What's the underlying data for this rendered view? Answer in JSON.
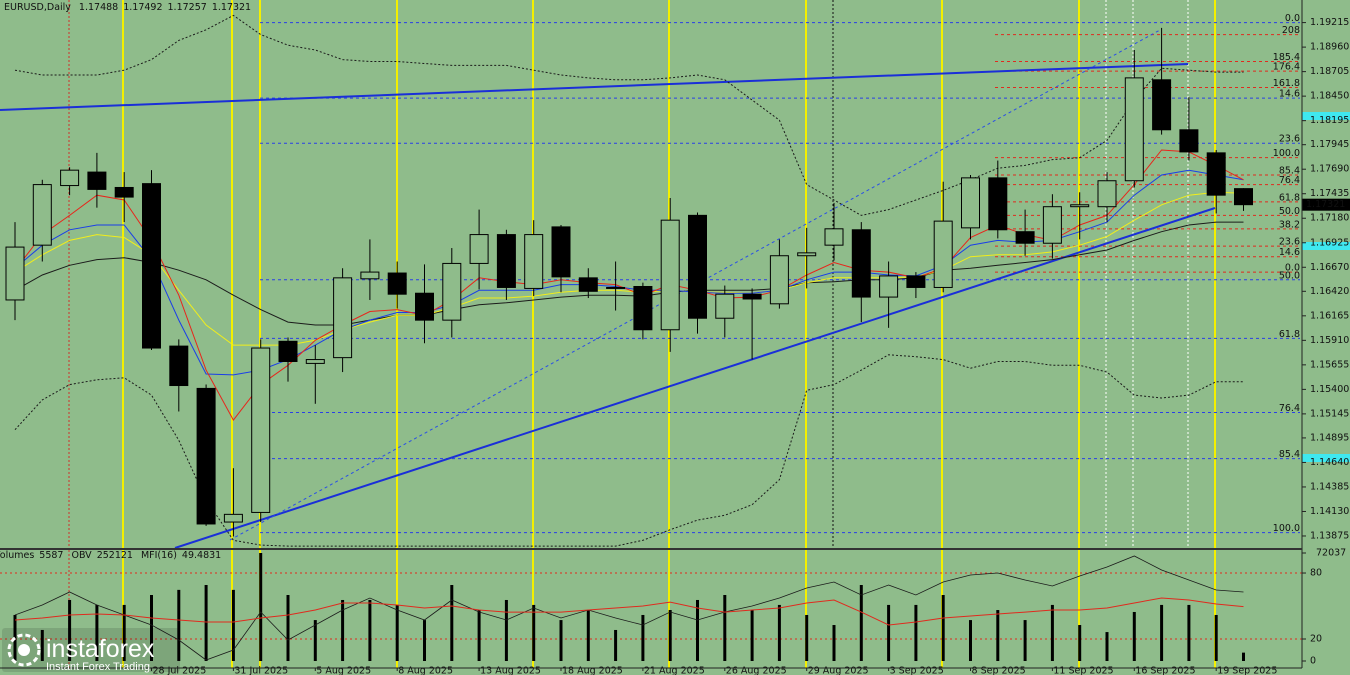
{
  "header": {
    "symbol": "EURUSD,Daily"
  },
  "logo": {
    "brand": "instaforex",
    "tagline": "Instant Forex Trading"
  },
  "chart_data": {
    "type": "candlestick",
    "categories": [
      null,
      null,
      null,
      null,
      null,
      "28 Jul 2025",
      null,
      null,
      "31 Jul 2025",
      null,
      null,
      "5 Aug 2025",
      null,
      null,
      "8 Aug 2025",
      null,
      null,
      "13 Aug 2025",
      null,
      null,
      "18 Aug 2025",
      null,
      null,
      "21 Aug 2025",
      null,
      null,
      "26 Aug 2025",
      null,
      null,
      "29 Aug 2025",
      null,
      null,
      "3 Sep 2025",
      null,
      null,
      "8 Sep 2025",
      null,
      null,
      "11 Sep 2025",
      null,
      null,
      "16 Sep 2025",
      null,
      null,
      "19 Sep 2025",
      null
    ],
    "open": [
      1.1633,
      1.169,
      1.1752,
      1.1766,
      1.175,
      1.1754,
      1.1585,
      1.1541,
      1.1402,
      1.1412,
      1.159,
      1.1567,
      1.1573,
      1.1655,
      1.1661,
      1.164,
      1.1612,
      1.1671,
      1.1701,
      1.1645,
      1.1709,
      1.1656,
      1.1645,
      1.1647,
      1.1602,
      1.1721,
      1.1614,
      1.1639,
      1.1629,
      1.1679,
      1.169,
      1.1706,
      1.1636,
      1.1658,
      1.1646,
      1.1708,
      1.176,
      1.1704,
      1.1692,
      1.173,
      1.173,
      1.1757,
      1.1862,
      1.181,
      1.1786,
      1.17488
    ],
    "high": [
      1.1714,
      1.1758,
      1.1771,
      1.1786,
      1.1766,
      1.1768,
      1.1592,
      1.1545,
      1.1458,
      1.1592,
      1.1594,
      1.1586,
      1.1666,
      1.1696,
      1.1673,
      1.167,
      1.1687,
      1.1727,
      1.1706,
      1.1716,
      1.1711,
      1.1666,
      1.1673,
      1.1651,
      1.1739,
      1.1724,
      1.1648,
      1.1645,
      1.1696,
      1.1708,
      1.1734,
      1.1714,
      1.1673,
      1.1662,
      1.1756,
      1.1763,
      1.1778,
      1.1727,
      1.1743,
      1.1745,
      1.1766,
      1.1893,
      1.1916,
      1.1844,
      1.1789,
      1.17492
    ],
    "low": [
      1.1612,
      1.1673,
      1.1742,
      1.1729,
      1.1714,
      1.1581,
      1.1517,
      1.1398,
      1.1387,
      1.1402,
      1.1548,
      1.1525,
      1.1558,
      1.1633,
      1.1624,
      1.1588,
      1.1594,
      1.1644,
      1.1633,
      1.1637,
      1.1641,
      1.1635,
      1.1622,
      1.1592,
      1.1579,
      1.1598,
      1.1594,
      1.1571,
      1.1624,
      1.1645,
      1.1674,
      1.161,
      1.1604,
      1.1635,
      1.1641,
      1.1696,
      1.1697,
      1.1679,
      1.1676,
      1.1696,
      1.1714,
      1.175,
      1.1805,
      1.1778,
      1.1723,
      1.17257
    ],
    "close": [
      1.1688,
      1.1753,
      1.1768,
      1.1748,
      1.174,
      1.1583,
      1.1544,
      1.14,
      1.141,
      1.1583,
      1.1569,
      1.1571,
      1.1656,
      1.1662,
      1.1639,
      1.1612,
      1.1671,
      1.1701,
      1.1646,
      1.1701,
      1.1657,
      1.1642,
      1.1646,
      1.1602,
      1.1716,
      1.1614,
      1.1639,
      1.1634,
      1.1679,
      1.1682,
      1.1707,
      1.1636,
      1.1658,
      1.1646,
      1.1715,
      1.176,
      1.1706,
      1.1692,
      1.173,
      1.1732,
      1.1757,
      1.1864,
      1.181,
      1.1787,
      1.1742,
      1.17321
    ],
    "up_color": "#8fbc8b",
    "down_color": "#000000",
    "ylim": [
      1.1375,
      1.1945
    ],
    "yticks": [
      1.19215,
      {
        "value": 1.1896,
        "label": "1.18960"
      },
      1.18705,
      {
        "value": 1.1845,
        "label": "1.18450"
      },
      1.18195,
      1.17945,
      {
        "value": 1.1769,
        "label": "1.17690"
      },
      1.17435,
      {
        "value": 1.1718,
        "label": "1.17180"
      },
      1.16925,
      {
        "value": 1.1667,
        "label": "1.16670"
      },
      {
        "value": 1.1642,
        "label": "1.16420"
      },
      1.16165,
      {
        "value": 1.1591,
        "label": "1.15910"
      },
      1.15655,
      {
        "value": 1.154,
        "label": "1.15400"
      },
      1.15145,
      1.14895,
      {
        "value": 1.1464,
        "label": "1.14640"
      },
      1.14385,
      {
        "value": 1.1413,
        "label": "1.14130"
      },
      1.13875
    ],
    "ma_lines": [
      {
        "color": "#1b1b1b",
        "values": [
          1.1643,
          1.1659,
          1.1669,
          1.1675,
          1.1677,
          1.1672,
          1.1664,
          1.1654,
          1.1638,
          1.1623,
          1.161,
          1.1607,
          1.1607,
          1.1612,
          1.1617,
          1.1617,
          1.1623,
          1.1628,
          1.163,
          1.1633,
          1.1636,
          1.1638,
          1.1638,
          1.1637,
          1.1641,
          1.1643,
          1.1643,
          1.1643,
          1.1645,
          1.1651,
          1.1652,
          1.1654,
          1.1654,
          1.1656,
          1.1664,
          1.1666,
          1.1669,
          1.1672,
          1.1675,
          1.168,
          1.1685,
          1.1695,
          1.1704,
          1.1711,
          1.1714,
          1.1714
        ]
      },
      {
        "color": "#f2ee1a",
        "values": [
          1.1662,
          1.168,
          1.1695,
          1.1701,
          1.1698,
          1.168,
          1.1643,
          1.1607,
          1.1586,
          1.1586,
          1.1586,
          1.1591,
          1.1602,
          1.161,
          1.1617,
          1.1617,
          1.1625,
          1.1635,
          1.1635,
          1.1637,
          1.1641,
          1.1643,
          1.1643,
          1.1641,
          1.1643,
          1.1641,
          1.1641,
          1.164,
          1.1643,
          1.1651,
          1.1656,
          1.1656,
          1.1656,
          1.1657,
          1.1664,
          1.1678,
          1.168,
          1.168,
          1.1683,
          1.169,
          1.1699,
          1.1716,
          1.1732,
          1.1742,
          1.1745,
          1.1744
        ]
      },
      {
        "color": "#1a3ee8",
        "values": [
          1.1666,
          1.169,
          1.1706,
          1.1711,
          1.1711,
          1.1675,
          1.1612,
          1.1556,
          1.1555,
          1.156,
          1.1571,
          1.1586,
          1.1602,
          1.1612,
          1.162,
          1.162,
          1.1628,
          1.1643,
          1.1643,
          1.1643,
          1.1649,
          1.1649,
          1.1647,
          1.1643,
          1.1643,
          1.1641,
          1.164,
          1.164,
          1.1643,
          1.1654,
          1.1662,
          1.1662,
          1.1659,
          1.1658,
          1.1669,
          1.169,
          1.1695,
          1.1693,
          1.1695,
          1.1704,
          1.1714,
          1.1742,
          1.1763,
          1.1768,
          1.1763,
          1.1758
        ]
      },
      {
        "color": "#e8251b",
        "values": [
          1.1664,
          1.1701,
          1.1721,
          1.1742,
          1.1737,
          1.1695,
          1.1638,
          1.156,
          1.1508,
          1.1545,
          1.1565,
          1.1591,
          1.1607,
          1.1621,
          1.1623,
          1.1617,
          1.1633,
          1.1656,
          1.1652,
          1.1649,
          1.1654,
          1.1651,
          1.1649,
          1.1638,
          1.1649,
          1.1643,
          1.1635,
          1.1636,
          1.1643,
          1.1659,
          1.1672,
          1.1664,
          1.1662,
          1.1656,
          1.1666,
          1.1698,
          1.1711,
          1.1701,
          1.1695,
          1.1711,
          1.1721,
          1.1753,
          1.1789,
          1.1787,
          1.1773,
          1.1758
        ]
      }
    ],
    "bollinger": {
      "color": "#1b1b1b",
      "upper": [
        1.1872,
        1.1867,
        1.1867,
        1.1867,
        1.1872,
        1.1883,
        1.1903,
        1.1914,
        1.1929,
        1.1909,
        1.1898,
        1.1893,
        1.1883,
        1.1881,
        1.1881,
        1.1879,
        1.1877,
        1.1877,
        1.1877,
        1.1872,
        1.1867,
        1.1864,
        1.1862,
        1.1862,
        1.1864,
        1.1867,
        1.1862,
        1.1841,
        1.182,
        1.1753,
        1.1737,
        1.1721,
        1.1727,
        1.1737,
        1.1747,
        1.1758,
        1.177,
        1.1773,
        1.1779,
        1.1781,
        1.1799,
        1.1841,
        1.1874,
        1.1872,
        1.187,
        1.187
      ],
      "lower": [
        1.1498,
        1.1529,
        1.1545,
        1.155,
        1.1552,
        1.1534,
        1.1487,
        1.1425,
        1.1383,
        1.1378,
        1.1377,
        1.1377,
        1.1377,
        1.1377,
        1.1377,
        1.1377,
        1.1377,
        1.1377,
        1.1377,
        1.1377,
        1.1377,
        1.1377,
        1.1377,
        1.1383,
        1.1394,
        1.1404,
        1.1409,
        1.142,
        1.1446,
        1.1539,
        1.1545,
        1.156,
        1.1576,
        1.1574,
        1.1571,
        1.1562,
        1.1569,
        1.1569,
        1.1565,
        1.1565,
        1.1558,
        1.1534,
        1.1531,
        1.1534,
        1.1548,
        1.1548
      ]
    },
    "fib_levels": [
      {
        "color": "#2a3fe6",
        "levels": [
          {
            "label": "0.0",
            "price": 1.19215
          },
          {
            "label": "14.6",
            "price": 1.1843
          },
          {
            "label": "23.6",
            "price": 1.1796
          },
          {
            "label": "50.0",
            "price": 1.1654
          },
          {
            "label": "61.8",
            "price": 1.1593
          },
          {
            "label": "76.4",
            "price": 1.1516
          },
          {
            "label": "85.4",
            "price": 1.1468
          },
          {
            "label": "100.0",
            "price": 1.1391
          }
        ]
      },
      {
        "color": "#e02a1e",
        "levels": [
          {
            "label": "208",
            "price": 1.1909
          },
          {
            "label": "185.4",
            "price": 1.1881
          },
          {
            "label": "176.4",
            "price": 1.1871
          },
          {
            "label": "161.8",
            "price": 1.1854
          },
          {
            "label": "100.0",
            "price": 1.1781
          },
          {
            "label": "85.4",
            "price": 1.1763
          },
          {
            "label": "76.4",
            "price": 1.1753
          },
          {
            "label": "61.8",
            "price": 1.1735
          },
          {
            "label": "50.0",
            "price": 1.1721
          },
          {
            "label": "38.2",
            "price": 1.1707
          },
          {
            "label": "23.6",
            "price": 1.1689
          },
          {
            "label": "14.6",
            "price": 1.1678
          },
          {
            "label": "0.0",
            "price": 1.1662
          }
        ]
      }
    ],
    "lower_panel": {
      "volumes_label": "Volumes",
      "volumes": [
        30700,
        20700,
        40700,
        37400,
        37400,
        44000,
        47400,
        50700,
        47400,
        72037,
        44000,
        27300,
        40700,
        40700,
        37400,
        27300,
        50700,
        34000,
        40700,
        37400,
        27300,
        34000,
        20700,
        30700,
        34000,
        40700,
        44000,
        34000,
        37400,
        30700,
        24000,
        50700,
        37400,
        37400,
        44000,
        27300,
        34000,
        27300,
        37400,
        24000,
        19300,
        32700,
        37400,
        37400,
        30700,
        5587
      ],
      "ylim": [
        0,
        72037
      ],
      "yticks": [
        72037
      ],
      "obv_label": "OBV",
      "obv": [
        22121,
        122121,
        252121,
        122121,
        22121,
        -77879,
        -227879,
        -427879,
        -327879,
        52121,
        -227879,
        -77879,
        72121,
        192121,
        72121,
        -27879,
        172121,
        52121,
        -27879,
        92121,
        -7879,
        72121,
        -7879,
        -77879,
        52121,
        -27879,
        52121,
        112121,
        192121,
        292121,
        352121,
        222121,
        322121,
        222121,
        352121,
        422121,
        442121,
        372121,
        312121,
        412121,
        502121,
        612121,
        472121,
        372121,
        272121,
        252121
      ],
      "obv_lim": [
        -437879,
        642121
      ],
      "obv_color": "#1b1b1b",
      "mfi_label": "MFI(16)",
      "mfi": [
        37.3,
        39.1,
        41.8,
        42.7,
        41.8,
        39.1,
        37.3,
        35.5,
        35.5,
        39.1,
        41.8,
        46.4,
        52.7,
        52.7,
        50.9,
        48.2,
        50.0,
        46.4,
        44.5,
        44.5,
        44.5,
        46.4,
        48.2,
        50.0,
        53.6,
        48.2,
        44.5,
        46.4,
        48.2,
        52.7,
        55.5,
        44.5,
        32.7,
        35.5,
        39.1,
        40.9,
        42.7,
        44.5,
        46.4,
        46.4,
        48.2,
        52.7,
        57.3,
        55.5,
        51.8,
        49.4831
      ],
      "mfi_lim": [
        0,
        98.2
      ],
      "mfi_ticks": [
        80,
        20,
        0
      ],
      "mfi_color": "#e02a1e"
    }
  }
}
